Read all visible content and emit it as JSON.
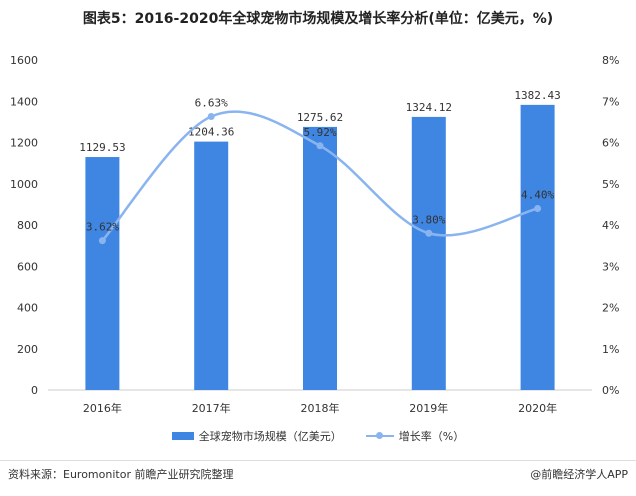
{
  "chart_data": {
    "type": "bar",
    "title": "图表5：2016-2020年全球宠物市场规模及增长率分析(单位：亿美元，%)",
    "categories": [
      "2016年",
      "2017年",
      "2018年",
      "2019年",
      "2020年"
    ],
    "series": [
      {
        "name": "全球宠物市场规模（亿美元）",
        "type": "bar",
        "axis": "left",
        "values": [
          1129.53,
          1204.36,
          1275.62,
          1324.12,
          1382.43
        ],
        "labels": [
          "1129.53",
          "1204.36",
          "1275.62",
          "1324.12",
          "1382.43"
        ],
        "color": "#3f86e3"
      },
      {
        "name": "增长率（%）",
        "type": "line",
        "axis": "right",
        "values": [
          3.62,
          6.63,
          5.92,
          3.8,
          4.4
        ],
        "labels": [
          "3.62%",
          "6.63%",
          "5.92%",
          "3.80%",
          "4.40%"
        ],
        "color": "#8ab4f0"
      }
    ],
    "ylim_left": [
      0,
      1600
    ],
    "yticks_left": [
      "0",
      "200",
      "400",
      "600",
      "800",
      "1000",
      "1200",
      "1400",
      "1600"
    ],
    "ylim_right": [
      0,
      8
    ],
    "yticks_right": [
      "0%",
      "1%",
      "2%",
      "3%",
      "4%",
      "5%",
      "6%",
      "7%",
      "8%"
    ],
    "grid": false,
    "legend": "bottom"
  },
  "footer": {
    "source": "资料来源：Euromonitor 前瞻产业研究院整理",
    "brand": "@前瞻经济学人APP"
  }
}
